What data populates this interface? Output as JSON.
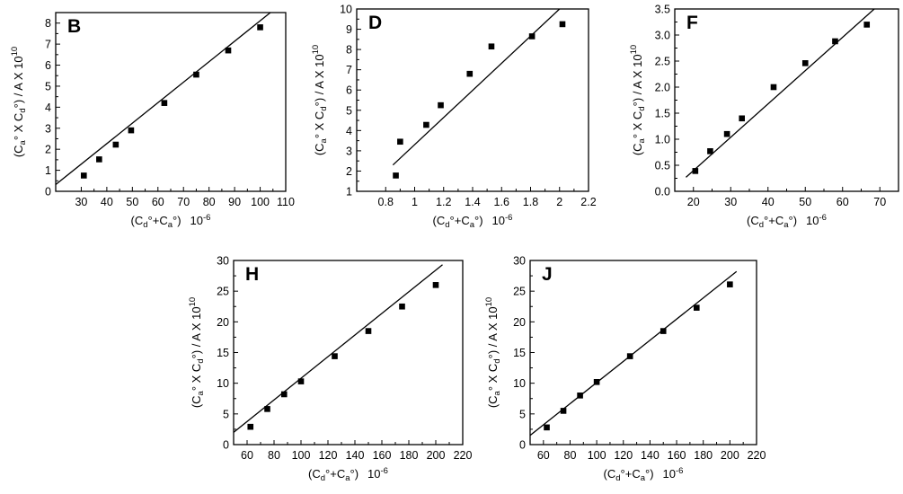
{
  "figure": {
    "colors": {
      "ink": "#000000",
      "background": "#ffffff"
    },
    "marker": "filled-square",
    "fit_line": "linear-least-squares"
  },
  "chart_data": [
    {
      "label": "B",
      "type": "scatter",
      "title": "",
      "xlabel": {
        "base": "(C",
        "sub1": "d",
        "mid": "°+C",
        "sub2": "a",
        "tail": "°)",
        "exp": "10",
        "exp_sup": "-6"
      },
      "ylabel": {
        "base": "(C",
        "sub1": "a",
        "mid": "° X C",
        "sub2": "d",
        "tail": "°) / A  X 10",
        "exp_sup": "10"
      },
      "xlim": [
        20,
        110
      ],
      "ylim": [
        0,
        8.5
      ],
      "xticks": [
        30,
        40,
        50,
        60,
        70,
        80,
        90,
        100,
        110
      ],
      "yticks": [
        0,
        1,
        2,
        3,
        4,
        5,
        6,
        7,
        8
      ],
      "x": [
        31,
        37,
        43.5,
        49.5,
        62.5,
        75,
        87.5,
        100
      ],
      "y": [
        0.75,
        1.52,
        2.22,
        2.9,
        4.2,
        5.55,
        6.7,
        7.8
      ],
      "fit": {
        "x": [
          20,
          104
        ],
        "y": [
          0.32,
          8.5
        ]
      }
    },
    {
      "label": "D",
      "type": "scatter",
      "title": "",
      "xlabel": {
        "base": "(C",
        "sub1": "d",
        "mid": "°+C",
        "sub2": "a",
        "tail": "°)",
        "exp": "10",
        "exp_sup": "-6"
      },
      "ylabel": {
        "base": "(C",
        "sub1": "a",
        "mid": "° X C",
        "sub2": "d",
        "tail": "°) / A  X 10",
        "exp_sup": "10"
      },
      "xlim": [
        0.6,
        2.2
      ],
      "ylim": [
        1,
        10
      ],
      "xticks": [
        0.8,
        1.0,
        1.2,
        1.4,
        1.6,
        1.8,
        2.0,
        2.2
      ],
      "yticks": [
        1,
        2,
        3,
        4,
        5,
        6,
        7,
        8,
        9,
        10
      ],
      "x": [
        0.87,
        0.9,
        1.08,
        1.18,
        1.38,
        1.53,
        1.81,
        2.02
      ],
      "y": [
        1.78,
        3.45,
        4.28,
        5.25,
        6.8,
        8.15,
        8.65,
        9.25
      ],
      "fit": {
        "x": [
          0.85,
          2.0
        ],
        "y": [
          2.3,
          10
        ]
      }
    },
    {
      "label": "F",
      "type": "scatter",
      "title": "",
      "xlabel": {
        "base": "(C",
        "sub1": "d",
        "mid": "°+C",
        "sub2": "a",
        "tail": "°)",
        "exp": "10",
        "exp_sup": "-6"
      },
      "ylabel": {
        "base": "(C",
        "sub1": "a",
        "mid": "° X C",
        "sub2": "d",
        "tail": "°) / A  X 10",
        "exp_sup": "10"
      },
      "xlim": [
        15,
        75
      ],
      "ylim": [
        0,
        3.5
      ],
      "xticks": [
        20,
        30,
        40,
        50,
        60,
        70
      ],
      "yticks": [
        "0.0",
        "0.5",
        "1.0",
        "1.5",
        "2.0",
        "2.5",
        "3.0",
        "3.5"
      ],
      "x": [
        20.5,
        24.5,
        29,
        33,
        41.5,
        50,
        58,
        66.5
      ],
      "y": [
        0.39,
        0.77,
        1.1,
        1.4,
        2.0,
        2.46,
        2.88,
        3.2
      ],
      "fit": {
        "x": [
          18,
          68.5
        ],
        "y": [
          0.27,
          3.5
        ]
      }
    },
    {
      "label": "H",
      "type": "scatter",
      "title": "",
      "xlabel": {
        "base": "(C",
        "sub1": "d",
        "mid": "°+C",
        "sub2": "a",
        "tail": "°)",
        "exp": "10",
        "exp_sup": "-6"
      },
      "ylabel": {
        "base": "(C",
        "sub1": "a",
        "mid": "° X C",
        "sub2": "d",
        "tail": "°) / A  X 10",
        "exp_sup": "10"
      },
      "xlim": [
        50,
        220
      ],
      "ylim": [
        0,
        30
      ],
      "xticks": [
        60,
        80,
        100,
        120,
        140,
        160,
        180,
        200,
        220
      ],
      "yticks": [
        0,
        5,
        10,
        15,
        20,
        25,
        30
      ],
      "x": [
        62.5,
        75,
        87.5,
        100,
        125,
        150,
        175,
        200
      ],
      "y": [
        2.9,
        5.8,
        8.2,
        10.3,
        14.4,
        18.5,
        22.5,
        26
      ],
      "fit": {
        "x": [
          50,
          205
        ],
        "y": [
          2.0,
          29.3
        ]
      }
    },
    {
      "label": "J",
      "type": "scatter",
      "title": "",
      "xlabel": {
        "base": "(C",
        "sub1": "d",
        "mid": "°+C",
        "sub2": "a",
        "tail": "°)",
        "exp": "10",
        "exp_sup": "-6"
      },
      "ylabel": {
        "base": "(C",
        "sub1": "a",
        "mid": "° X C",
        "sub2": "d",
        "tail": "°) / A  X 10",
        "exp_sup": "10"
      },
      "xlim": [
        50,
        220
      ],
      "ylim": [
        0,
        30
      ],
      "xticks": [
        60,
        80,
        100,
        120,
        140,
        160,
        180,
        200,
        220
      ],
      "yticks": [
        0,
        5,
        10,
        15,
        20,
        25,
        30
      ],
      "x": [
        62.5,
        75,
        87.5,
        100,
        125,
        150,
        175,
        200
      ],
      "y": [
        2.8,
        5.5,
        8.0,
        10.2,
        14.4,
        18.5,
        22.3,
        26.1
      ],
      "fit": {
        "x": [
          50,
          205
        ],
        "y": [
          1.5,
          28.2
        ]
      }
    }
  ]
}
